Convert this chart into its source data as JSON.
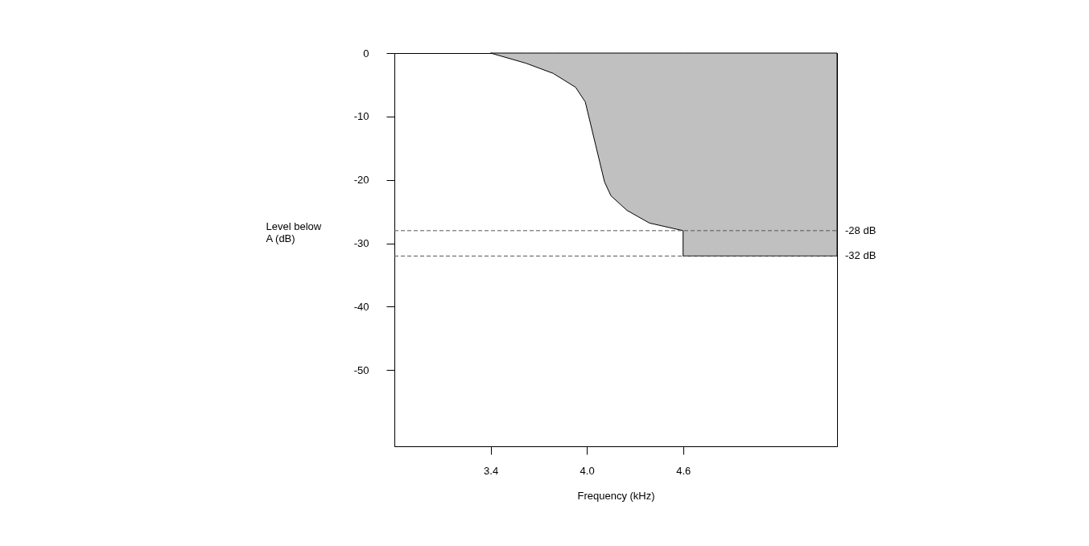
{
  "chart_data": {
    "type": "area",
    "xlabel": "Frequency (kHz)",
    "ylabel": "Level below A (dB)",
    "x": [
      3.4,
      3.62,
      3.79,
      3.93,
      3.99,
      4.11,
      4.15,
      4.25,
      4.39,
      4.6,
      4.6,
      5.56
    ],
    "series": [
      {
        "color": "#c0c0c0",
        "values": [
          0,
          -1.6,
          -3.2,
          -5.4,
          -7.7,
          -20.3,
          -22.5,
          -24.8,
          -26.8,
          -28,
          -32,
          -32
        ]
      }
    ],
    "xlim": [
      2.8,
      5.56
    ],
    "xticks": [
      3.4,
      {
        "value": 4,
        "label": "4.0"
      },
      4.6
    ],
    "ylim": [
      -62,
      0
    ],
    "yticks": [
      0,
      -10,
      -20,
      -30,
      -40,
      -50
    ],
    "ref_lines": [
      {
        "axis": "y",
        "value": -28,
        "label": "-28 dB",
        "color": "#555555",
        "line_style": "dashed"
      },
      {
        "axis": "y",
        "value": -32,
        "label": "-32 dB",
        "color": "#555555",
        "line_style": "dashed"
      }
    ],
    "grid": false
  }
}
